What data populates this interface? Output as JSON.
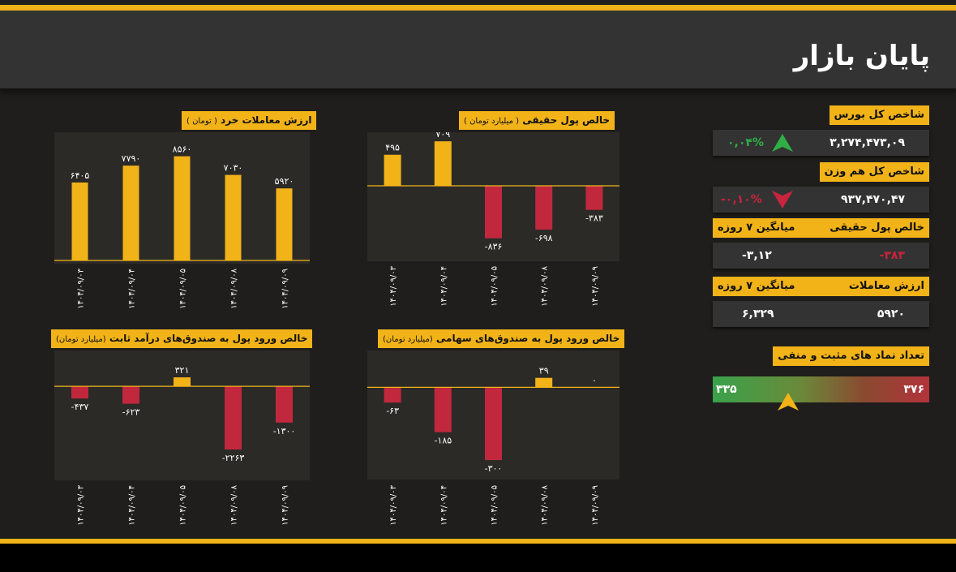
{
  "header": {
    "title": "پایان بازار"
  },
  "sidebar": {
    "total_index": {
      "label": "شاخص کل بورس",
      "value": "۳,۲۷۴,۴۷۳,۰۹",
      "change": "۰,۰۴%"
    },
    "equal_index": {
      "label": "شاخص کل هم وزن",
      "value": "۹۳۷,۴۷۰,۴۷",
      "change": "-۰,۱۰%"
    },
    "real_money": {
      "label": "خالص پول حقیقی",
      "avg_label": "میانگین ۷ روزه",
      "value": "-۳۸۳",
      "avg": "-۳,۱۲"
    },
    "trade_value": {
      "label": "ارزش معاملات",
      "avg_label": "میانگین ۷ روزه",
      "value": "۵۹۲۰",
      "avg": "۶,۳۲۹"
    },
    "symbols": {
      "label": "تعداد نماد های مثبت و منفی",
      "positive": "۳۳۵",
      "negative": "۳۷۶",
      "positive_count": 335,
      "negative_count": 376
    }
  },
  "colors": {
    "accent": "#f2b319",
    "positive": "#2fae45",
    "negative": "#c9243d",
    "bar_pos": "#f2b319",
    "bar_neg": "#c1283d"
  },
  "chart_data": [
    {
      "id": "retail",
      "type": "bar",
      "title": "ارزش معاملات خرد",
      "subtitle": "( تومان )",
      "categories": [
        "۱۴۰۴/۰۹/۰۳",
        "۱۴۰۴/۰۹/۰۴",
        "۱۴۰۴/۰۹/۰۵",
        "۱۴۰۴/۰۹/۰۸",
        "۱۴۰۴/۰۹/۰۹"
      ],
      "values": [
        6405,
        7790,
        8560,
        7030,
        5920
      ],
      "labels": [
        "۶۴۰۵",
        "۷۷۹۰",
        "۸۵۶۰",
        "۷۰۳۰",
        "۵۹۲۰"
      ],
      "ylim": [
        0,
        10000
      ]
    },
    {
      "id": "realmoney",
      "type": "bar",
      "title": "خالص پول حقیقی",
      "subtitle": "( میلیارد تومان )",
      "categories": [
        "۱۴۰۴/۰۹/۰۳",
        "۱۴۰۴/۰۹/۰۴",
        "۱۴۰۴/۰۹/۰۵",
        "۱۴۰۴/۰۹/۰۸",
        "۱۴۰۴/۰۹/۰۹"
      ],
      "values": [
        495,
        709,
        -836,
        -698,
        -383
      ],
      "labels": [
        "۴۹۵",
        "۷۰۹",
        "-۸۳۶",
        "-۶۹۸",
        "-۳۸۳"
      ],
      "ylim": [
        -1150,
        750
      ]
    },
    {
      "id": "fixedincome",
      "type": "bar",
      "title": "خالص ورود پول به صندوق‌های درآمد ثابت",
      "subtitle": "(میلیارد تومان)",
      "categories": [
        "۱۴۰۴/۰۹/۰۳",
        "۱۴۰۴/۰۹/۰۴",
        "۱۴۰۴/۰۹/۰۵",
        "۱۴۰۴/۰۹/۰۸",
        "۱۴۰۴/۰۹/۰۹"
      ],
      "values": [
        -437,
        -623,
        321,
        -2263,
        -1300
      ],
      "labels": [
        "-۴۳۷",
        "-۶۲۳",
        "۳۲۱",
        "-۲۲۶۳",
        "-۱۳۰۰"
      ],
      "ylim": [
        -3250,
        1050
      ]
    },
    {
      "id": "equity",
      "type": "bar",
      "title": "خالص ورود پول به صندوق‌های سهامی",
      "subtitle": "(میلیارد تومان)",
      "categories": [
        "۱۴۰۴/۰۹/۰۳",
        "۱۴۰۴/۰۹/۰۴",
        "۱۴۰۴/۰۹/۰۵",
        "۱۴۰۴/۰۹/۰۸",
        "۱۴۰۴/۰۹/۰۹"
      ],
      "values": [
        -63,
        -185,
        -300,
        39,
        0
      ],
      "labels": [
        "-۶۳",
        "-۱۸۵",
        "-۳۰۰",
        "۳۹",
        "۰"
      ],
      "ylim": [
        -370,
        125
      ]
    }
  ]
}
